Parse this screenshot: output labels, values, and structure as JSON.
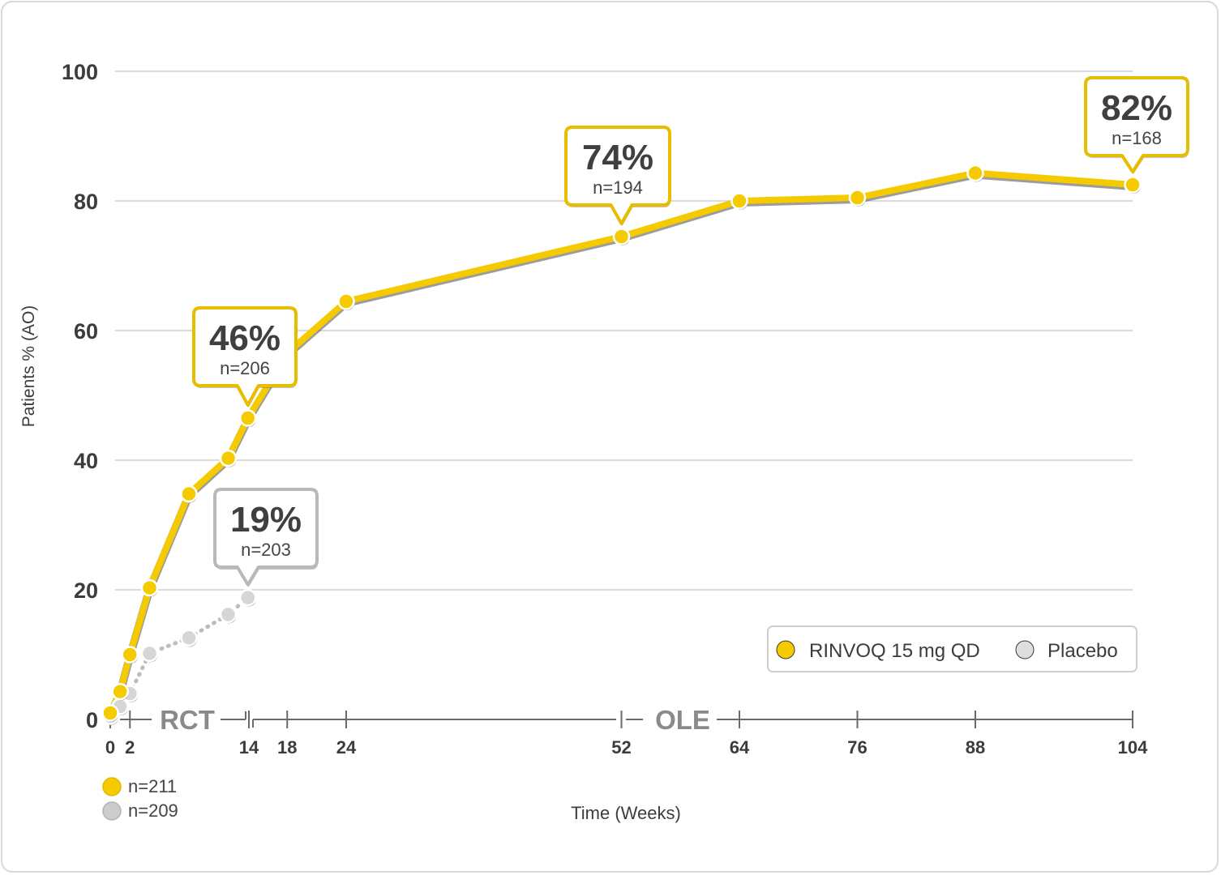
{
  "chart_data": {
    "type": "line",
    "title": "",
    "xlabel": "Time (Weeks)",
    "ylabel": "Patients % (AO)",
    "ylim": [
      0,
      100
    ],
    "yticks": [
      0,
      20,
      40,
      60,
      80,
      100
    ],
    "xticks": [
      0,
      2,
      14,
      18,
      24,
      52,
      64,
      76,
      88,
      104
    ],
    "grid": true,
    "legend_position": "bottom-right",
    "phases": [
      {
        "label": "RCT"
      },
      {
        "label": "OLE"
      }
    ],
    "series": [
      {
        "name": "RINVOQ 15 mg QD",
        "color": "#f5cb00",
        "style": "solid",
        "count_label": "n=211",
        "x": [
          0,
          1,
          2,
          4,
          8,
          12,
          14,
          18,
          24,
          52,
          64,
          76,
          88,
          104
        ],
        "y": [
          1,
          4.3,
          10,
          20.3,
          34.8,
          40.3,
          46.5,
          56.5,
          64.5,
          74.5,
          80,
          80.5,
          84.3,
          82.5
        ]
      },
      {
        "name": "Placebo",
        "color": "#cccccc",
        "style": "dotted",
        "count_label": "n=209",
        "x": [
          0,
          1,
          2,
          4,
          8,
          12,
          14
        ],
        "y": [
          0.5,
          2,
          4,
          10.2,
          12.6,
          16.2,
          18.8
        ]
      }
    ],
    "annotations": [
      {
        "series": 0,
        "x": 14,
        "y": 46.5,
        "value": "46%",
        "n": "n=206"
      },
      {
        "series": 0,
        "x": 52,
        "y": 74.5,
        "value": "74%",
        "n": "n=194"
      },
      {
        "series": 0,
        "x": 104,
        "y": 82.5,
        "value": "82%",
        "n": "n=168"
      },
      {
        "series": 1,
        "x": 14,
        "y": 18.8,
        "value": "19%",
        "n": "n=203"
      }
    ]
  },
  "colors": {
    "accent": "#f5cb00",
    "accent_border": "#e7bd00",
    "placebo": "#cccccc",
    "placebo_border": "#b9b9b9",
    "grid": "#cfcfcf",
    "text": "#3c3c3c"
  }
}
